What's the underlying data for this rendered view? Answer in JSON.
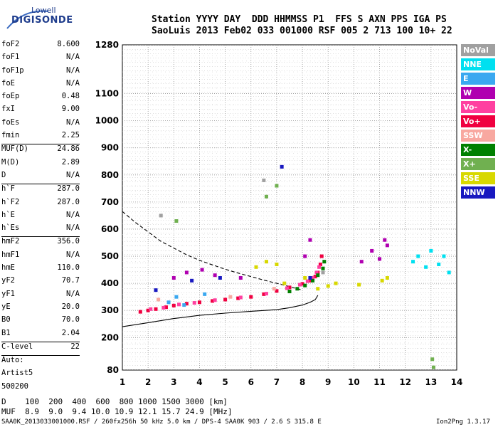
{
  "logo": {
    "brand": "Lowell",
    "product": "DIGISONDE"
  },
  "header": {
    "line1": "Station YYYY DAY  DDD HHMMSS P1  FFS S AXN PPS IGA PS",
    "line2": "SaoLuis 2013 Feb02 033 001000 RSF 005 2 713 100 10+ 22"
  },
  "parameters": [
    {
      "name": "foF2",
      "value": "8.600"
    },
    {
      "name": "foF1",
      "value": "N/A"
    },
    {
      "name": "foF1p",
      "value": "N/A"
    },
    {
      "name": "foE",
      "value": "N/A"
    },
    {
      "name": "foEp",
      "value": "0.48"
    },
    {
      "name": "fxI",
      "value": "9.00"
    },
    {
      "name": "foEs",
      "value": "N/A"
    },
    {
      "name": "fmin",
      "value": "2.25"
    },
    {
      "name": "MUF(D)",
      "value": "24.86"
    },
    {
      "name": "M(D)",
      "value": "2.89"
    },
    {
      "name": "D",
      "value": "N/A"
    },
    {
      "name": "h`F",
      "value": "287.0"
    },
    {
      "name": "h`F2",
      "value": "287.0"
    },
    {
      "name": "h`E",
      "value": "N/A"
    },
    {
      "name": "h`Es",
      "value": "N/A"
    },
    {
      "name": "hmF2",
      "value": "356.0"
    },
    {
      "name": "hmF1",
      "value": "N/A"
    },
    {
      "name": "hmE",
      "value": "110.0"
    },
    {
      "name": "yF2",
      "value": "70.7"
    },
    {
      "name": "yF1",
      "value": "N/A"
    },
    {
      "name": "yE",
      "value": "20.0"
    },
    {
      "name": "B0",
      "value": "70.0"
    },
    {
      "name": "B1",
      "value": "2.04"
    },
    {
      "name": "C-level",
      "value": "22"
    }
  ],
  "autoscaling": {
    "label": "Auto:",
    "artist": "Artist5",
    "code": "500200"
  },
  "legend": [
    {
      "label": "NoVal",
      "color": "#a0a0a0"
    },
    {
      "label": "NNE",
      "color": "#00e0f0"
    },
    {
      "label": "E",
      "color": "#3aa8f0"
    },
    {
      "label": "W",
      "color": "#b000b0"
    },
    {
      "label": "Vo-",
      "color": "#ff40a0"
    },
    {
      "label": "Vo+",
      "color": "#f00040"
    },
    {
      "label": "SSW",
      "color": "#f8a8a0"
    },
    {
      "label": "X-",
      "color": "#008000"
    },
    {
      "label": "X+",
      "color": "#70b050"
    },
    {
      "label": "SSE",
      "color": "#d8d800"
    },
    {
      "label": "NNW",
      "color": "#1818c0"
    }
  ],
  "footer": {
    "dist_line": "D    100  200  400  600  800 1000 1500 3000 [km]",
    "muf_line": "MUF  8.9  9.0  9.4 10.0 10.9 12.1 15.7 24.9 [MHz]",
    "file_line": "SAA0K_2013033001000.RSF / 260fx256h 50 kHz 5.0 km / DPS-4 SAA0K 903 / 2.6 S 315.8 E",
    "version": "Ion2Png 1.3.17"
  },
  "chart_data": {
    "type": "scatter",
    "title": "",
    "xlabel": "",
    "ylabel": "",
    "xlim": [
      1,
      14
    ],
    "ylim": [
      80,
      1280
    ],
    "x_ticks": [
      1,
      2,
      3,
      4,
      5,
      6,
      7,
      8,
      9,
      10,
      11,
      12,
      13,
      14
    ],
    "y_ticks": [
      80,
      200,
      300,
      400,
      500,
      600,
      700,
      800,
      900,
      1000,
      1100,
      1280
    ],
    "grid": true,
    "legend_position": "right",
    "series": [
      {
        "name": "Vo+",
        "color": "#f00040",
        "points": [
          [
            1.7,
            295
          ],
          [
            2.0,
            300
          ],
          [
            2.3,
            305
          ],
          [
            2.7,
            312
          ],
          [
            3.0,
            318
          ],
          [
            3.5,
            325
          ],
          [
            4.0,
            330
          ],
          [
            4.5,
            335
          ],
          [
            5.0,
            340
          ],
          [
            5.5,
            345
          ],
          [
            6.0,
            350
          ],
          [
            6.5,
            360
          ],
          [
            7.0,
            372
          ],
          [
            7.5,
            385
          ],
          [
            8.0,
            398
          ],
          [
            8.3,
            410
          ],
          [
            8.5,
            425
          ],
          [
            8.6,
            440
          ],
          [
            8.7,
            470
          ],
          [
            8.75,
            500
          ]
        ]
      },
      {
        "name": "Vo-",
        "color": "#ff40a0",
        "points": [
          [
            2.1,
            305
          ],
          [
            2.6,
            310
          ],
          [
            3.2,
            322
          ],
          [
            3.8,
            328
          ],
          [
            4.6,
            338
          ],
          [
            5.6,
            348
          ],
          [
            6.6,
            362
          ],
          [
            7.4,
            382
          ],
          [
            7.9,
            395
          ],
          [
            8.2,
            408
          ],
          [
            8.4,
            420
          ],
          [
            8.55,
            440
          ],
          [
            8.65,
            460
          ]
        ]
      },
      {
        "name": "X-",
        "color": "#008000",
        "points": [
          [
            7.5,
            370
          ],
          [
            7.8,
            380
          ],
          [
            8.1,
            392
          ],
          [
            8.4,
            410
          ],
          [
            8.6,
            430
          ],
          [
            8.8,
            455
          ],
          [
            8.85,
            480
          ]
        ]
      },
      {
        "name": "W",
        "color": "#b000b0",
        "points": [
          [
            3.0,
            420
          ],
          [
            3.5,
            440
          ],
          [
            4.1,
            450
          ],
          [
            4.6,
            430
          ],
          [
            5.6,
            420
          ],
          [
            8.1,
            500
          ],
          [
            8.3,
            560
          ],
          [
            10.3,
            480
          ],
          [
            10.7,
            520
          ],
          [
            11.0,
            490
          ],
          [
            11.2,
            560
          ],
          [
            11.3,
            540
          ]
        ]
      },
      {
        "name": "SSE",
        "color": "#d8d800",
        "points": [
          [
            6.2,
            460
          ],
          [
            6.6,
            480
          ],
          [
            7.0,
            470
          ],
          [
            7.3,
            400
          ],
          [
            8.1,
            420
          ],
          [
            8.6,
            380
          ],
          [
            9.0,
            390
          ],
          [
            9.3,
            400
          ],
          [
            10.2,
            395
          ],
          [
            11.1,
            410
          ],
          [
            11.3,
            420
          ]
        ]
      },
      {
        "name": "NNE",
        "color": "#00e0f0",
        "points": [
          [
            12.3,
            480
          ],
          [
            12.5,
            500
          ],
          [
            12.8,
            460
          ],
          [
            13.0,
            520
          ],
          [
            13.3,
            470
          ],
          [
            13.5,
            500
          ],
          [
            13.7,
            440
          ]
        ]
      },
      {
        "name": "E",
        "color": "#3aa8f0",
        "points": [
          [
            2.8,
            330
          ],
          [
            3.1,
            350
          ],
          [
            3.4,
            320
          ],
          [
            4.2,
            360
          ]
        ]
      },
      {
        "name": "NNW",
        "color": "#1818c0",
        "points": [
          [
            2.3,
            375
          ],
          [
            3.7,
            410
          ],
          [
            4.8,
            420
          ],
          [
            7.2,
            830
          ],
          [
            8.3,
            420
          ]
        ]
      },
      {
        "name": "X+",
        "color": "#70b050",
        "points": [
          [
            3.1,
            630
          ],
          [
            6.6,
            720
          ],
          [
            7.0,
            760
          ],
          [
            13.1,
            90
          ],
          [
            13.05,
            120
          ]
        ]
      },
      {
        "name": "SSW",
        "color": "#f8a8a0",
        "points": [
          [
            2.4,
            340
          ],
          [
            5.2,
            350
          ],
          [
            6.9,
            380
          ]
        ]
      },
      {
        "name": "NoVal",
        "color": "#a0a0a0",
        "points": [
          [
            2.5,
            650
          ],
          [
            6.5,
            780
          ],
          [
            8.8,
            440
          ]
        ]
      }
    ],
    "curves": [
      {
        "name": "profile",
        "style": "solid",
        "points": [
          [
            1,
            240
          ],
          [
            2,
            255
          ],
          [
            3,
            270
          ],
          [
            4,
            282
          ],
          [
            5,
            290
          ],
          [
            6,
            297
          ],
          [
            7,
            303
          ],
          [
            7.5,
            310
          ],
          [
            8,
            320
          ],
          [
            8.3,
            330
          ],
          [
            8.5,
            340
          ],
          [
            8.6,
            356
          ]
        ]
      },
      {
        "name": "fit",
        "style": "dashed",
        "points": [
          [
            1,
            665
          ],
          [
            1.5,
            625
          ],
          [
            2,
            590
          ],
          [
            2.5,
            555
          ],
          [
            3,
            530
          ],
          [
            3.5,
            505
          ],
          [
            4,
            485
          ],
          [
            4.5,
            468
          ],
          [
            5,
            452
          ],
          [
            5.5,
            438
          ],
          [
            6,
            425
          ],
          [
            6.5,
            412
          ],
          [
            7,
            400
          ],
          [
            7.5,
            388
          ],
          [
            8,
            375
          ]
        ]
      }
    ]
  }
}
